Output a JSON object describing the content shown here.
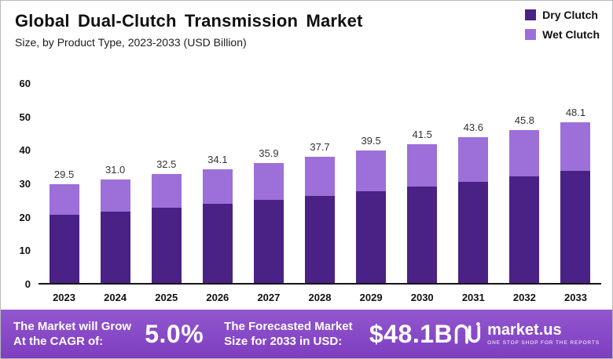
{
  "header": {
    "title": "Global Dual-Clutch Transmission Market",
    "subtitle": "Size, by Product Type, 2023-2033 (USD Billion)"
  },
  "legend": [
    {
      "label": "Dry Clutch",
      "color": "#4a2185"
    },
    {
      "label": "Wet Clutch",
      "color": "#9d6fd9"
    }
  ],
  "chart_data": {
    "type": "bar",
    "stacked": true,
    "title": "Global Dual-Clutch Transmission Market Size, by Product Type, 2023-2033 (USD Billion)",
    "categories": [
      "2023",
      "2024",
      "2025",
      "2026",
      "2027",
      "2028",
      "2029",
      "2030",
      "2031",
      "2032",
      "2033"
    ],
    "series": [
      {
        "name": "Dry Clutch",
        "color": "#4a2185",
        "values": [
          20.5,
          21.3,
          22.5,
          23.7,
          24.8,
          26.0,
          27.4,
          28.8,
          30.2,
          31.9,
          33.5
        ]
      },
      {
        "name": "Wet Clutch",
        "color": "#9d6fd9",
        "values": [
          9.0,
          9.7,
          10.0,
          10.4,
          11.1,
          11.7,
          12.1,
          12.7,
          13.4,
          13.9,
          14.6
        ]
      }
    ],
    "totals": [
      29.5,
      31.0,
      32.5,
      34.1,
      35.9,
      37.7,
      39.5,
      41.5,
      43.6,
      45.8,
      48.1
    ],
    "ylim": [
      0,
      60
    ],
    "yticks": [
      0,
      10,
      20,
      30,
      40,
      50,
      60
    ],
    "grid": false,
    "legend_position": "top-right",
    "xlabel": "",
    "ylabel": ""
  },
  "footer": {
    "cagr_label": "The Market will Grow At the CAGR of:",
    "cagr_value": "5.0%",
    "forecast_label": "The Forecasted Market Size for 2033 in USD:",
    "forecast_value": "$48.1B",
    "brand": "market.us",
    "brand_tagline": "ONE STOP SHOP FOR THE REPORTS"
  }
}
